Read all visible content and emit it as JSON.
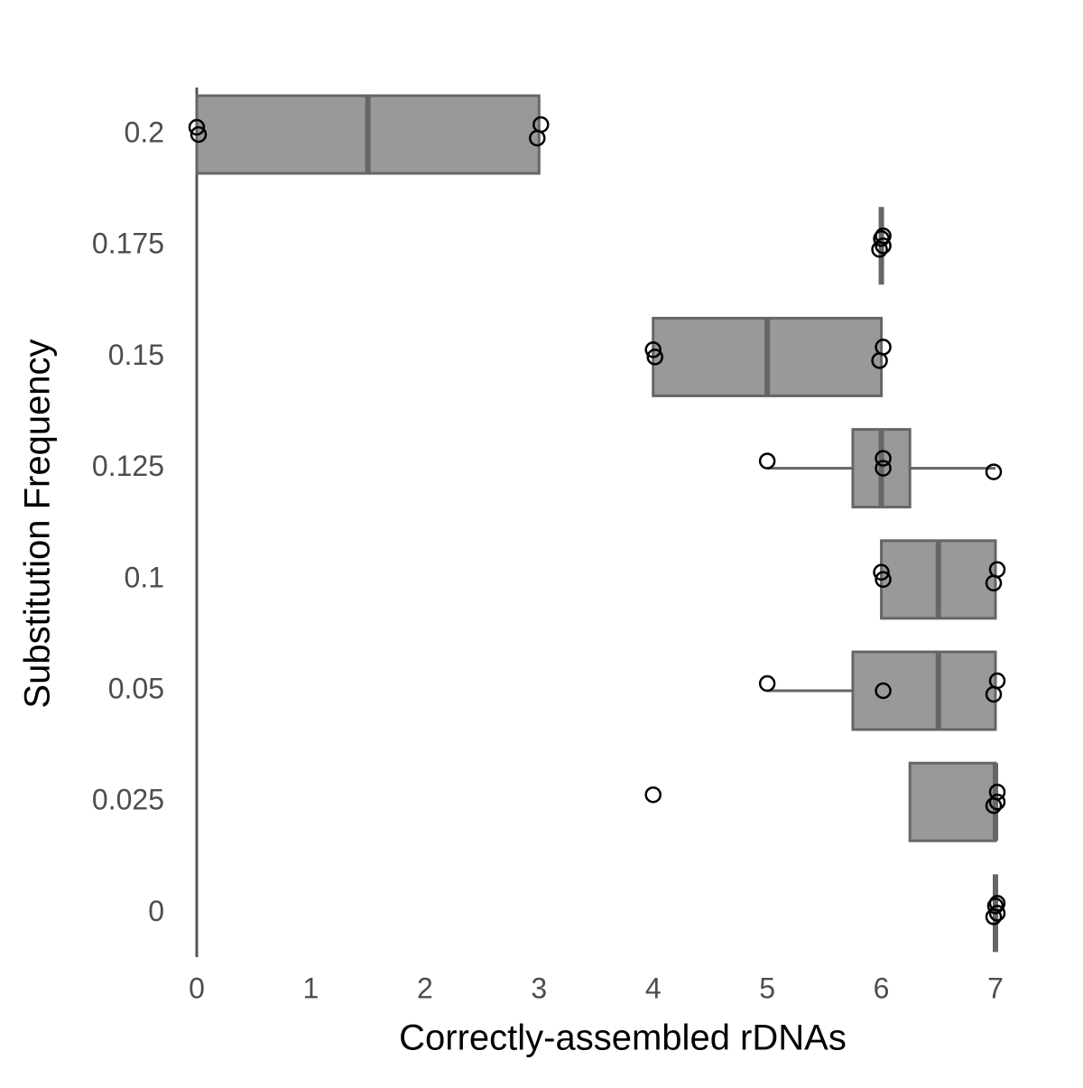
{
  "chart_data": {
    "type": "boxplot",
    "x_label": "Correctly-assembled rDNAs",
    "y_label": "Substitution Frequency",
    "categories": [
      "0.2",
      "0.175",
      "0.15",
      "0.125",
      "0.1",
      "0.05",
      "0.025",
      "0"
    ],
    "boxes": [
      {
        "min": 0,
        "q1": 0,
        "median": 1.5,
        "q3": 3,
        "max": 3
      },
      {
        "min": 6,
        "q1": 6,
        "median": 6,
        "q3": 6,
        "max": 6
      },
      {
        "min": 4,
        "q1": 4,
        "median": 5,
        "q3": 6,
        "max": 6
      },
      {
        "min": 5,
        "q1": 5.75,
        "median": 6,
        "q3": 6.25,
        "max": 7
      },
      {
        "min": 6,
        "q1": 6,
        "median": 6.5,
        "q3": 7,
        "max": 7
      },
      {
        "min": 5,
        "q1": 5.75,
        "median": 6.5,
        "q3": 7,
        "max": 7
      },
      {
        "min": 6.25,
        "q1": 6.25,
        "median": 7,
        "q3": 7,
        "max": 7
      },
      {
        "min": 7,
        "q1": 7,
        "median": 7,
        "q3": 7,
        "max": 7
      }
    ],
    "points": [
      [
        0,
        0,
        3,
        3
      ],
      [
        6,
        6,
        6,
        6
      ],
      [
        4,
        4,
        6,
        6
      ],
      [
        5,
        6,
        6,
        7
      ],
      [
        6,
        6,
        7,
        7
      ],
      [
        5,
        6,
        7,
        7
      ],
      [
        4,
        7,
        7,
        7
      ],
      [
        7,
        7,
        7,
        7
      ]
    ],
    "box_color": "#999999",
    "line_color": "#666666",
    "xlim": [
      0,
      7
    ],
    "xticks": [
      0,
      1,
      2,
      3,
      4,
      5,
      6,
      7
    ]
  }
}
